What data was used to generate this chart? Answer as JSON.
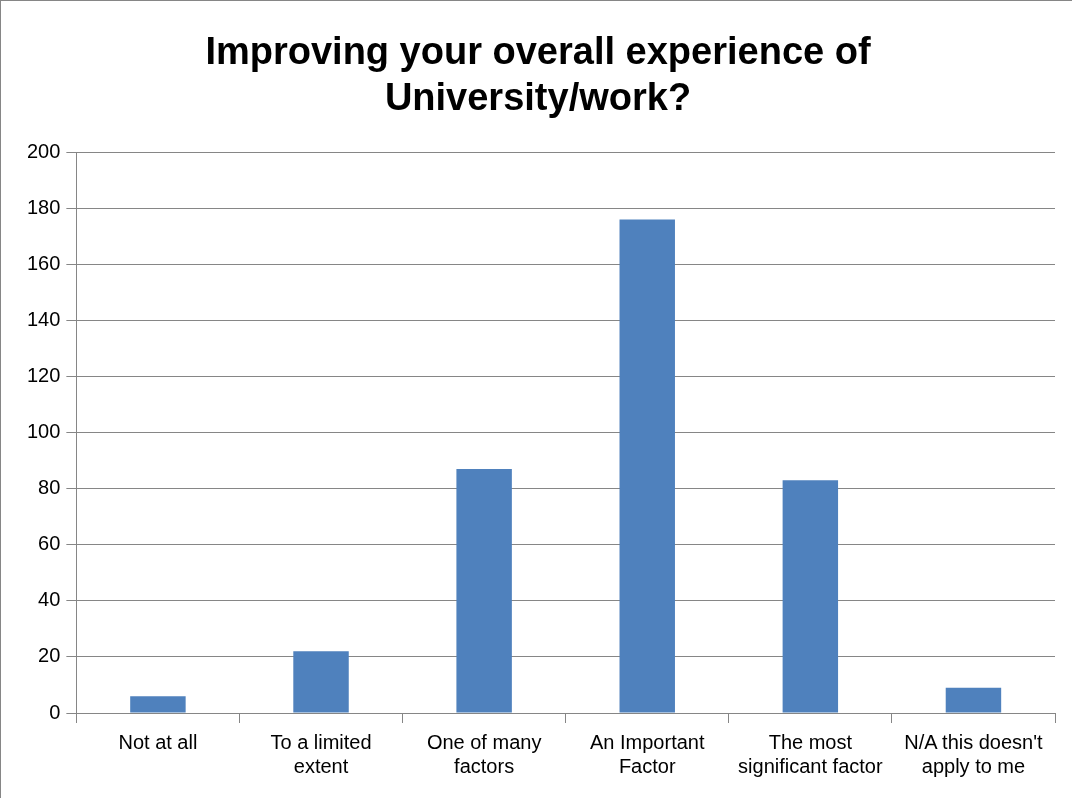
{
  "chart_data": {
    "type": "bar",
    "title": "Improving your overall experience of University/work?",
    "categories": [
      "Not at all",
      "To a limited extent",
      "One of many factors",
      "An Important Factor",
      "The most significant factor",
      "N/A this doesn't apply to me"
    ],
    "values": [
      6,
      22,
      87,
      176,
      83,
      9
    ],
    "color": "#4f81bd",
    "ylim": [
      0,
      200
    ],
    "yticks": [
      0,
      20,
      40,
      60,
      80,
      100,
      120,
      140,
      160,
      180,
      200
    ],
    "grid": "y",
    "legend": false
  }
}
